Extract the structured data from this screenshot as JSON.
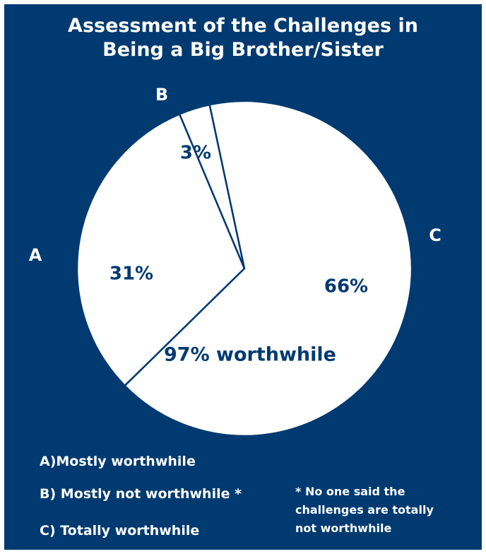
{
  "chart_data": {
    "type": "pie",
    "title_lines": [
      "Assessment of the Challenges in",
      "Being a Big Brother/Sister"
    ],
    "slices": [
      {
        "letter": "A",
        "value": 31,
        "label": "31%"
      },
      {
        "letter": "B",
        "value": 3,
        "label": "3%"
      },
      {
        "letter": "C",
        "value": 66,
        "label": "66%"
      }
    ],
    "annotation": "97% worthwhile",
    "legend": [
      "A)Mostly worthwhile",
      "B) Mostly not worthwhile *",
      "C) Totally worthwhile"
    ],
    "footnote_lines": [
      "* No one said the",
      "challenges are totally",
      "not worthwhile"
    ]
  },
  "colors": {
    "background": "#003a70",
    "slice_fill": "#ffffff",
    "text_on_slice": "#003a70",
    "text_on_background": "#ffffff"
  }
}
